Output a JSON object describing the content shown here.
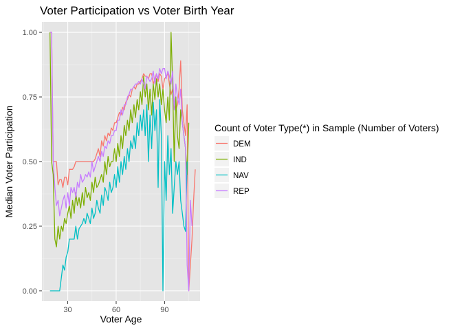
{
  "chart_data": {
    "type": "line",
    "title": "Voter Participation vs Voter Birth Year",
    "xlabel": "Voter Age",
    "ylabel": "Median Voter Participation",
    "xlim": [
      14,
      112
    ],
    "ylim": [
      -0.04,
      1.04
    ],
    "x_ticks": [
      30,
      60,
      90
    ],
    "y_ticks": [
      0.0,
      0.25,
      0.5,
      0.75,
      1.0
    ],
    "y_tick_labels": [
      "0.00",
      "0.25",
      "0.50",
      "0.75",
      "1.00"
    ],
    "grid": true,
    "background": "#e5e5e5",
    "legend": {
      "title": "Count of Voter Type(*) in Sample (Number of Voters)",
      "position": "right"
    },
    "series": [
      {
        "name": "DEM",
        "color": "#f8766d",
        "x": [
          19,
          20,
          21,
          22,
          23,
          24,
          25,
          26,
          27,
          28,
          29,
          30,
          31,
          32,
          33,
          34,
          35,
          36,
          37,
          38,
          39,
          40,
          41,
          42,
          43,
          44,
          45,
          46,
          47,
          48,
          49,
          50,
          51,
          52,
          53,
          54,
          55,
          56,
          57,
          58,
          59,
          60,
          61,
          62,
          63,
          64,
          65,
          66,
          67,
          68,
          69,
          70,
          71,
          72,
          73,
          74,
          75,
          76,
          77,
          78,
          79,
          80,
          81,
          82,
          83,
          84,
          85,
          86,
          87,
          88,
          89,
          90,
          91,
          92,
          93,
          94,
          95,
          96,
          97,
          98,
          99,
          100,
          101,
          102,
          103,
          104,
          105,
          106,
          107,
          108,
          109
        ],
        "values": [
          1.0,
          1.0,
          0.5,
          0.5,
          0.5,
          0.41,
          0.43,
          0.43,
          0.4,
          0.44,
          0.44,
          0.41,
          0.47,
          0.47,
          0.47,
          0.48,
          0.5,
          0.5,
          0.5,
          0.5,
          0.5,
          0.5,
          0.5,
          0.5,
          0.5,
          0.5,
          0.5,
          0.5,
          0.51,
          0.53,
          0.55,
          0.52,
          0.58,
          0.56,
          0.6,
          0.58,
          0.61,
          0.6,
          0.63,
          0.62,
          0.65,
          0.65,
          0.67,
          0.69,
          0.68,
          0.71,
          0.7,
          0.73,
          0.74,
          0.76,
          0.75,
          0.78,
          0.79,
          0.78,
          0.8,
          0.8,
          0.81,
          0.82,
          0.84,
          0.83,
          0.83,
          0.82,
          0.84,
          0.84,
          0.8,
          0.82,
          0.84,
          0.81,
          0.84,
          0.83,
          0.78,
          0.82,
          0.83,
          0.84,
          0.8,
          0.76,
          0.78,
          0.72,
          0.7,
          0.72,
          0.78,
          0.89,
          0.7,
          0.65,
          0.6,
          0.72,
          0.0,
          0.1,
          0.2,
          0.35,
          0.47
        ]
      },
      {
        "name": "IND",
        "color": "#7cae00",
        "x": [
          19,
          20,
          21,
          22,
          23,
          24,
          25,
          26,
          27,
          28,
          29,
          30,
          31,
          32,
          33,
          34,
          35,
          36,
          37,
          38,
          39,
          40,
          41,
          42,
          43,
          44,
          45,
          46,
          47,
          48,
          49,
          50,
          51,
          52,
          53,
          54,
          55,
          56,
          57,
          58,
          59,
          60,
          61,
          62,
          63,
          64,
          65,
          66,
          67,
          68,
          69,
          70,
          71,
          72,
          73,
          74,
          75,
          76,
          77,
          78,
          79,
          80,
          81,
          82,
          83,
          84,
          85,
          86,
          87,
          88,
          89,
          90,
          91,
          92,
          93,
          94,
          95,
          96,
          97,
          98,
          99,
          100,
          101,
          102,
          103,
          104,
          105
        ],
        "values": [
          1.0,
          0.5,
          0.45,
          0.2,
          0.17,
          0.25,
          0.2,
          0.25,
          0.23,
          0.28,
          0.26,
          0.3,
          0.33,
          0.28,
          0.35,
          0.3,
          0.38,
          0.33,
          0.36,
          0.32,
          0.38,
          0.33,
          0.4,
          0.36,
          0.38,
          0.35,
          0.42,
          0.38,
          0.44,
          0.4,
          0.41,
          0.43,
          0.45,
          0.42,
          0.5,
          0.45,
          0.52,
          0.48,
          0.5,
          0.5,
          0.55,
          0.5,
          0.57,
          0.52,
          0.6,
          0.55,
          0.64,
          0.6,
          0.66,
          0.62,
          0.7,
          0.65,
          0.72,
          0.67,
          0.74,
          0.7,
          0.77,
          0.72,
          0.83,
          0.75,
          0.8,
          0.7,
          0.78,
          0.68,
          0.8,
          0.74,
          0.82,
          0.75,
          0.8,
          0.72,
          0.78,
          0.7,
          0.65,
          0.75,
          0.66,
          1.0,
          0.8,
          0.5,
          0.75,
          0.6,
          0.55,
          0.7,
          0.65,
          0.6,
          0.55,
          0.45,
          0.65
        ]
      },
      {
        "name": "NAV",
        "color": "#00bfc4",
        "x": [
          19,
          20,
          21,
          22,
          23,
          24,
          25,
          26,
          27,
          28,
          29,
          30,
          31,
          32,
          33,
          34,
          35,
          36,
          37,
          38,
          39,
          40,
          41,
          42,
          43,
          44,
          45,
          46,
          47,
          48,
          49,
          50,
          51,
          52,
          53,
          54,
          55,
          56,
          57,
          58,
          59,
          60,
          61,
          62,
          63,
          64,
          65,
          66,
          67,
          68,
          69,
          70,
          71,
          72,
          73,
          74,
          75,
          76,
          77,
          78,
          79,
          80,
          81,
          82,
          83,
          84,
          85,
          86,
          87,
          88,
          89,
          90,
          91,
          92,
          93,
          94,
          95,
          96,
          97,
          98,
          99,
          100,
          101,
          102,
          103,
          104
        ],
        "values": [
          0.0,
          0.0,
          0.0,
          0.0,
          0.0,
          0.0,
          0.0,
          0.05,
          0.1,
          0.08,
          0.13,
          0.15,
          0.2,
          0.2,
          0.2,
          0.2,
          0.25,
          0.2,
          0.24,
          0.25,
          0.26,
          0.28,
          0.26,
          0.3,
          0.28,
          0.26,
          0.32,
          0.28,
          0.3,
          0.35,
          0.32,
          0.3,
          0.37,
          0.33,
          0.4,
          0.38,
          0.35,
          0.42,
          0.38,
          0.4,
          0.45,
          0.4,
          0.48,
          0.42,
          0.5,
          0.45,
          0.52,
          0.47,
          0.55,
          0.5,
          0.58,
          0.55,
          0.6,
          0.55,
          0.65,
          0.6,
          0.68,
          0.62,
          0.7,
          0.6,
          0.72,
          0.5,
          0.68,
          0.55,
          0.73,
          0.62,
          0.7,
          0.4,
          0.74,
          0.6,
          0.0,
          0.5,
          0.35,
          0.6,
          0.45,
          0.55,
          0.3,
          0.4,
          0.5,
          0.45,
          0.5,
          0.35,
          0.3,
          0.25,
          0.23,
          0.5
        ]
      },
      {
        "name": "REP",
        "color": "#c77cff",
        "x": [
          19,
          20,
          21,
          22,
          23,
          24,
          25,
          26,
          27,
          28,
          29,
          30,
          31,
          32,
          33,
          34,
          35,
          36,
          37,
          38,
          39,
          40,
          41,
          42,
          43,
          44,
          45,
          46,
          47,
          48,
          49,
          50,
          51,
          52,
          53,
          54,
          55,
          56,
          57,
          58,
          59,
          60,
          61,
          62,
          63,
          64,
          65,
          66,
          67,
          68,
          69,
          70,
          71,
          72,
          73,
          74,
          75,
          76,
          77,
          78,
          79,
          80,
          81,
          82,
          83,
          84,
          85,
          86,
          87,
          88,
          89,
          90,
          91,
          92,
          93,
          94,
          95,
          96,
          97,
          98,
          99,
          100,
          101,
          102,
          103,
          104,
          105,
          106,
          107
        ],
        "values": [
          1.0,
          1.0,
          0.5,
          0.4,
          0.33,
          0.35,
          0.29,
          0.32,
          0.35,
          0.37,
          0.32,
          0.38,
          0.33,
          0.4,
          0.38,
          0.4,
          0.36,
          0.42,
          0.4,
          0.45,
          0.42,
          0.43,
          0.45,
          0.44,
          0.46,
          0.44,
          0.5,
          0.46,
          0.48,
          0.5,
          0.52,
          0.5,
          0.54,
          0.52,
          0.56,
          0.55,
          0.58,
          0.57,
          0.6,
          0.6,
          0.62,
          0.62,
          0.66,
          0.66,
          0.7,
          0.68,
          0.72,
          0.72,
          0.75,
          0.76,
          0.78,
          0.78,
          0.79,
          0.8,
          0.8,
          0.81,
          0.8,
          0.82,
          0.8,
          0.78,
          0.83,
          0.82,
          0.81,
          0.82,
          0.85,
          0.8,
          0.84,
          0.82,
          0.86,
          0.84,
          0.86,
          0.86,
          0.82,
          0.85,
          0.83,
          0.8,
          0.85,
          0.7,
          0.8,
          0.75,
          0.72,
          0.78,
          0.65,
          0.6,
          0.55,
          0.1,
          0.0,
          0.35,
          0.25
        ]
      }
    ]
  }
}
